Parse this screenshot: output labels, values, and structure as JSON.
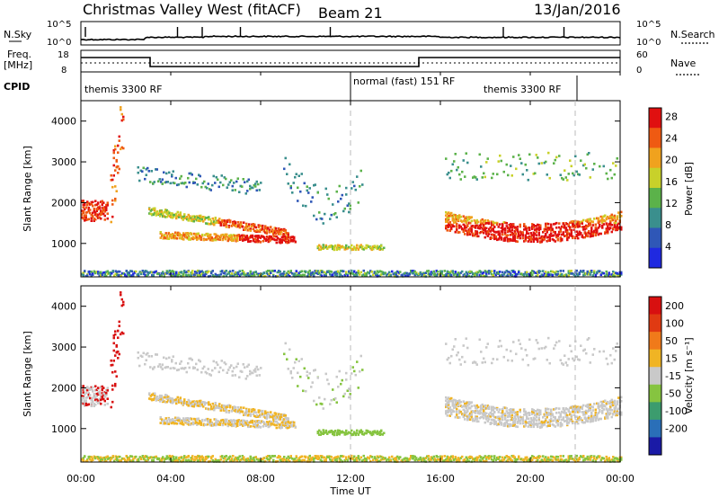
{
  "header": {
    "title": "Christmas Valley West (fitACF)",
    "beam": "Beam 21",
    "date": "13/Jan/2016"
  },
  "sky_panel": {
    "left_label": "N.Sky",
    "right_label": "N.Search",
    "left_ticks": [
      "10^5",
      "10^0"
    ],
    "right_ticks": [
      "10^5",
      "10^0"
    ]
  },
  "freq_panel": {
    "left_label_line1": "Freq.",
    "left_label_line2": "[MHz]",
    "right_label": "Nave",
    "left_ticks": [
      "18",
      "8"
    ],
    "right_ticks": [
      "60",
      "0"
    ]
  },
  "cpid": {
    "label": "CPID",
    "segments": [
      {
        "text": "themis 3300 RF",
        "start_hour": 0,
        "end_hour": 12
      },
      {
        "text": "normal (fast) 151 RF",
        "start_hour": 12,
        "end_hour": 22
      },
      {
        "text": "themis 3300 RF",
        "start_hour": 22,
        "end_hour": 24
      }
    ]
  },
  "x_axis": {
    "label": "Time UT",
    "ticks": [
      "00:00",
      "04:00",
      "08:00",
      "12:00",
      "16:00",
      "20:00",
      "00:00"
    ]
  },
  "chart_data": [
    {
      "type": "heatmap",
      "title": "",
      "ylabel": "Slant Range [km]",
      "yticks": [
        1000,
        2000,
        3000,
        4000
      ],
      "ylim": [
        180,
        4500
      ],
      "xlim_hours": [
        0,
        24
      ],
      "colorbar": {
        "label": "Power [dB]",
        "ticks": [
          "4",
          "8",
          "12",
          "16",
          "20",
          "24",
          "28"
        ],
        "range": [
          0,
          30
        ],
        "colors": [
          "#1f29e0",
          "#2f57b7",
          "#3a8f8d",
          "#5bb24a",
          "#c8d12a",
          "#f0a21e",
          "#ef5a12",
          "#e01010"
        ]
      }
    },
    {
      "type": "heatmap",
      "title": "",
      "ylabel": "Slant Range [km]",
      "yticks": [
        1000,
        2000,
        3000,
        4000
      ],
      "ylim": [
        180,
        4500
      ],
      "xlim_hours": [
        0,
        24
      ],
      "colorbar": {
        "label": "Velocity [m s⁻¹]",
        "ticks": [
          "200",
          "100",
          "50",
          "15",
          "-15",
          "-50",
          "-100",
          "-200"
        ],
        "colors": [
          "#1a1aa6",
          "#2a6fb8",
          "#3c9c6e",
          "#86c440",
          "#c9c9c9",
          "#f0b424",
          "#f07a1a",
          "#e03a12",
          "#d81010"
        ]
      }
    }
  ]
}
